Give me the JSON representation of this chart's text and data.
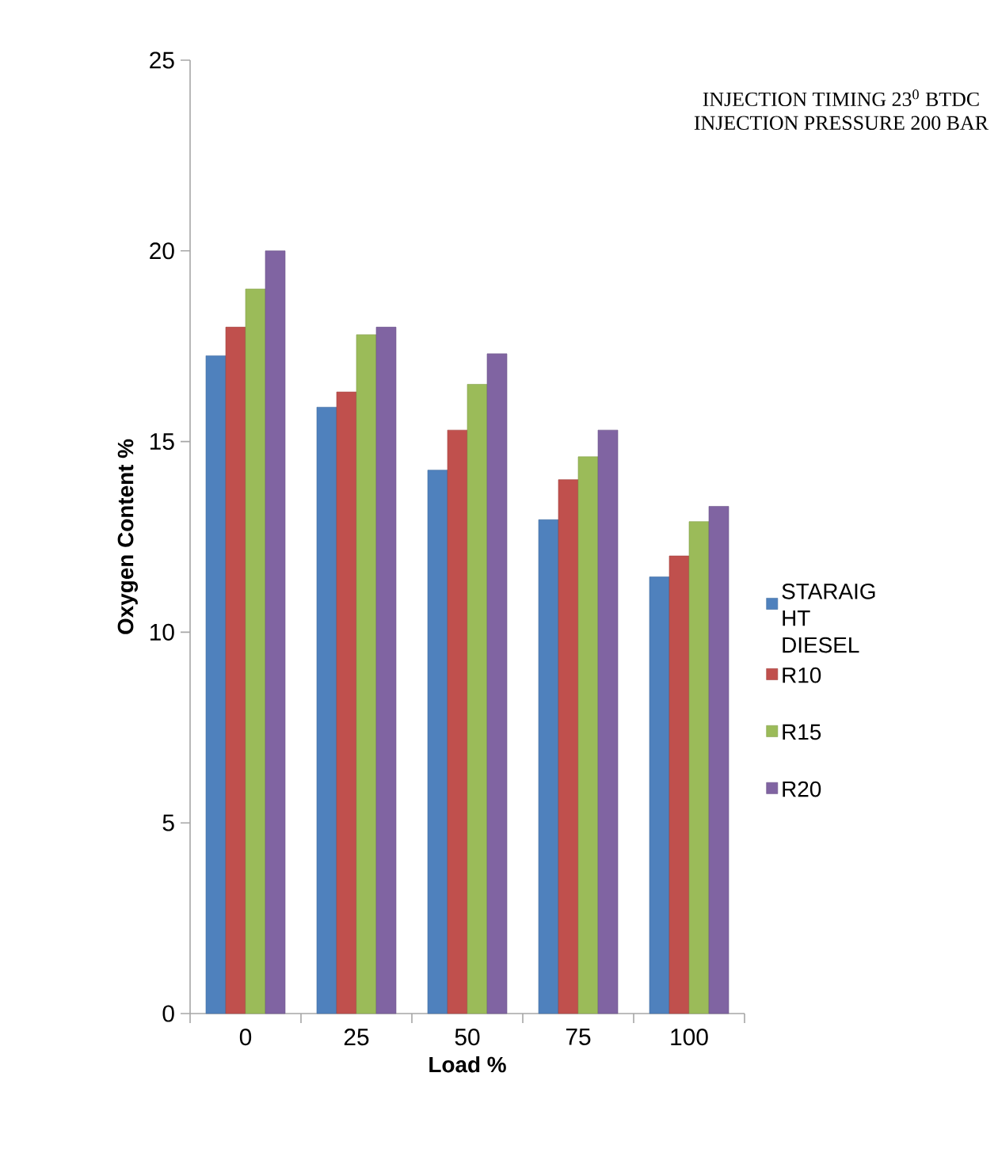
{
  "chart_data": {
    "type": "bar",
    "xlabel": "Load %",
    "ylabel": "Oxygen Content %",
    "annotations": [
      "INJECTION TIMING 23$^{0}$ BTDC",
      "INJECTION PRESSURE  200 BAR"
    ],
    "categories": [
      "0",
      "25",
      "50",
      "75",
      "100"
    ],
    "series": [
      {
        "name": "STARAIG HT DIESEL",
        "color": "#4f81bd",
        "values": [
          17.25,
          15.9,
          14.25,
          12.95,
          11.45
        ]
      },
      {
        "name": "R10",
        "color": "#c0504d",
        "values": [
          18,
          16.3,
          15.3,
          14,
          12
        ]
      },
      {
        "name": "R15",
        "color": "#9bbb59",
        "values": [
          19,
          17.8,
          16.5,
          14.6,
          12.9
        ]
      },
      {
        "name": "R20",
        "color": "#8064a2",
        "values": [
          20,
          18,
          17.3,
          15.3,
          13.3
        ]
      }
    ],
    "ylim": [
      0,
      25
    ],
    "yticks": [
      0,
      5,
      10,
      15,
      20,
      25
    ],
    "grid": false,
    "legend": "right"
  }
}
